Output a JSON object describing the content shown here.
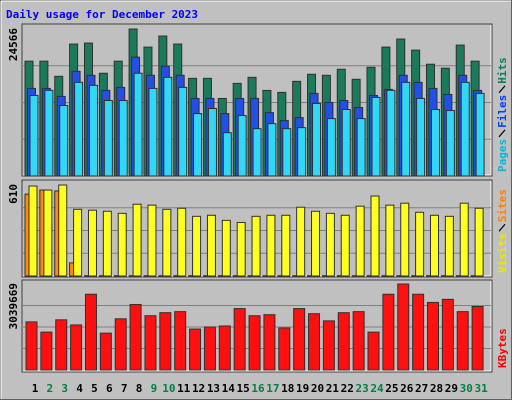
{
  "chart_data": [
    {
      "type": "bar",
      "title": "Daily usage for December 2023",
      "ylim": [
        0,
        24566
      ],
      "yticks": [
        24566
      ],
      "grid": true,
      "series": [
        {
          "name": "Hits",
          "color": "#1c7a5c",
          "label_color": "#008060",
          "values": [
            19190,
            19190,
            16660,
            22050,
            22220,
            17170,
            19190,
            24566,
            21540,
            23390,
            22050,
            16320,
            16320,
            12960,
            15480,
            16490,
            14300,
            13970,
            15820,
            17000,
            16830,
            17840,
            16160,
            18170,
            21540,
            22890,
            21040,
            18680,
            18010,
            21880,
            19190
          ]
        },
        {
          "name": "Files",
          "color": "#2050e8",
          "label_color": "#0040ff",
          "values": [
            14640,
            14640,
            13300,
            17500,
            16830,
            14310,
            14810,
            19860,
            16830,
            18350,
            16830,
            12960,
            12960,
            10430,
            12960,
            12960,
            10600,
            9260,
            9760,
            13800,
            12290,
            12620,
            11440,
            13460,
            14470,
            16830,
            15650,
            14640,
            13630,
            16830,
            14310
          ]
        },
        {
          "name": "Pages",
          "color": "#30d8f8",
          "label_color": "#00b8d8",
          "values": [
            13460,
            14310,
            11780,
            15650,
            15150,
            12620,
            12620,
            17170,
            14640,
            16490,
            14810,
            10430,
            11280,
            7240,
            10100,
            7910,
            8750,
            7910,
            8080,
            12120,
            9590,
            11110,
            9590,
            13130,
            14310,
            15650,
            12960,
            11110,
            10940,
            15650,
            13800
          ]
        }
      ]
    },
    {
      "type": "bar",
      "ylim": [
        0,
        610
      ],
      "yticks": [
        610
      ],
      "grid": true,
      "series": [
        {
          "name": "Sites",
          "color": "#ff8c00",
          "label_color": "#ff8000",
          "values": [
            549,
            576,
            570,
            88,
            2,
            2,
            2,
            2,
            2,
            2,
            2,
            2,
            2,
            2,
            2,
            2,
            2,
            2,
            2,
            2,
            2,
            2,
            2,
            2,
            2,
            2,
            2,
            2,
            2,
            2,
            2
          ]
        },
        {
          "name": "Visits",
          "color": "#ffff20",
          "label_color": "#e8e800",
          "values": [
            603,
            576,
            610,
            447,
            441,
            434,
            420,
            481,
            475,
            447,
            454,
            400,
            407,
            373,
            359,
            400,
            407,
            407,
            461,
            434,
            420,
            407,
            468,
            536,
            475,
            488,
            427,
            407,
            400,
            488,
            454
          ]
        }
      ]
    },
    {
      "type": "bar",
      "ylim": [
        0,
        3039669
      ],
      "yticks": [
        3039669
      ],
      "grid": true,
      "categories": [
        "1",
        "2",
        "3",
        "4",
        "5",
        "6",
        "7",
        "8",
        "9",
        "10",
        "11",
        "12",
        "13",
        "14",
        "15",
        "16",
        "17",
        "18",
        "19",
        "20",
        "21",
        "22",
        "23",
        "24",
        "25",
        "26",
        "27",
        "28",
        "29",
        "30",
        "31"
      ],
      "category_colors": [
        "#000000",
        "#008040",
        "#008040",
        "#000000",
        "#000000",
        "#000000",
        "#000000",
        "#000000",
        "#008040",
        "#008040",
        "#000000",
        "#000000",
        "#000000",
        "#000000",
        "#000000",
        "#008040",
        "#008040",
        "#000000",
        "#000000",
        "#000000",
        "#000000",
        "#000000",
        "#008040",
        "#008040",
        "#000000",
        "#000000",
        "#000000",
        "#000000",
        "#000000",
        "#008040",
        "#008040"
      ],
      "series": [
        {
          "name": "KBytes",
          "color": "#ff1010",
          "label_color": "#ff0000",
          "values": [
            1700800,
            1338900,
            1773200,
            1592200,
            2677800,
            1302700,
            1809400,
            2316000,
            1917900,
            2026500,
            2062700,
            1447500,
            1519900,
            1556000,
            2171200,
            1917900,
            1954100,
            1483700,
            2171200,
            1990300,
            1737000,
            2026500,
            2062700,
            1338900,
            2677800,
            3039669,
            2677800,
            2388300,
            2496900,
            2062700,
            2243600
          ]
        }
      ]
    }
  ]
}
